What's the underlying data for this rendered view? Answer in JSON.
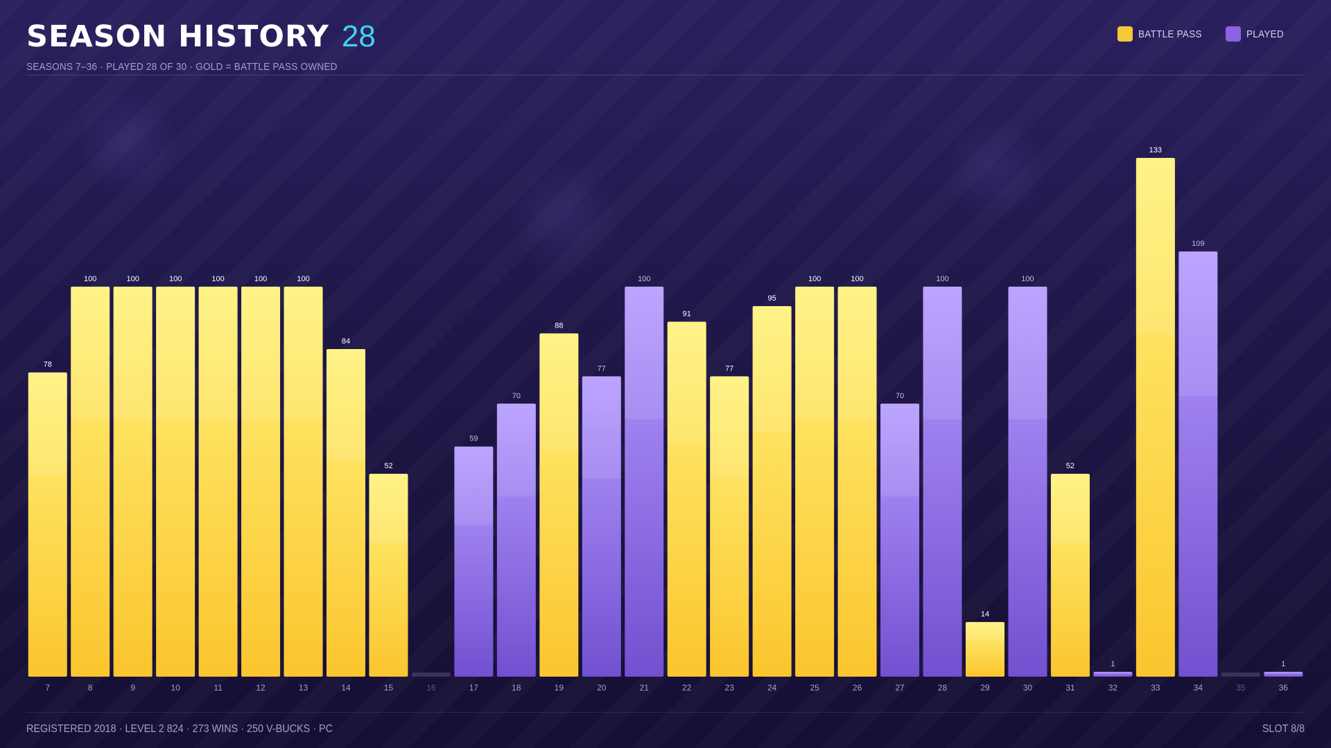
{
  "header": {
    "title": "SEASON HISTORY",
    "count": "28",
    "subtitle": "SEASONS 7–36 · PLAYED 28 OF 30 · GOLD = BATTLE PASS OWNED"
  },
  "legend": [
    {
      "label": "BATTLE PASS",
      "color": "#f5c93a"
    },
    {
      "label": "PLAYED",
      "color": "#8a63e0"
    }
  ],
  "footer": {
    "left": "REGISTERED 2018 · LEVEL 2 824 · 273 WINS · 250 V-BUCKS · PC",
    "right": "SLOT 8/8"
  },
  "colors": {
    "gold_top": "#fff27a",
    "gold_bottom": "#fbc52e",
    "purple_top": "#b59bff",
    "purple_bottom": "#7250d0",
    "empty": "#3a3358",
    "accent": "#3fd4f2"
  },
  "chart_data": {
    "type": "bar",
    "categories": [
      "7",
      "8",
      "9",
      "10",
      "11",
      "12",
      "13",
      "14",
      "15",
      "16",
      "17",
      "18",
      "19",
      "20",
      "21",
      "22",
      "23",
      "24",
      "25",
      "26",
      "27",
      "28",
      "29",
      "30",
      "31",
      "32",
      "33",
      "34",
      "35",
      "36"
    ],
    "values": [
      78,
      100,
      100,
      100,
      100,
      100,
      100,
      84,
      52,
      0,
      59,
      70,
      88,
      77,
      100,
      91,
      77,
      95,
      100,
      100,
      70,
      100,
      14,
      100,
      52,
      1,
      133,
      109,
      0,
      1
    ],
    "labels": [
      "78",
      "100",
      "100",
      "100",
      "100",
      "100",
      "100",
      "84",
      "52",
      "",
      "59",
      "70",
      "88",
      "77",
      "100",
      "91",
      "77",
      "95",
      "100",
      "100",
      "70",
      "100",
      "14",
      "100",
      "52",
      "1",
      "133",
      "109",
      "",
      "1"
    ],
    "battle_pass": [
      true,
      true,
      true,
      true,
      true,
      true,
      true,
      true,
      true,
      false,
      false,
      false,
      true,
      false,
      false,
      true,
      true,
      true,
      true,
      true,
      false,
      false,
      true,
      false,
      true,
      false,
      true,
      false,
      false,
      false
    ],
    "played": [
      true,
      true,
      true,
      true,
      true,
      true,
      true,
      true,
      true,
      false,
      true,
      true,
      true,
      true,
      true,
      true,
      true,
      true,
      true,
      true,
      true,
      true,
      true,
      true,
      true,
      true,
      true,
      true,
      false,
      true
    ],
    "ylim": [
      0,
      133
    ],
    "grid": false,
    "legend_position": "top-right"
  }
}
